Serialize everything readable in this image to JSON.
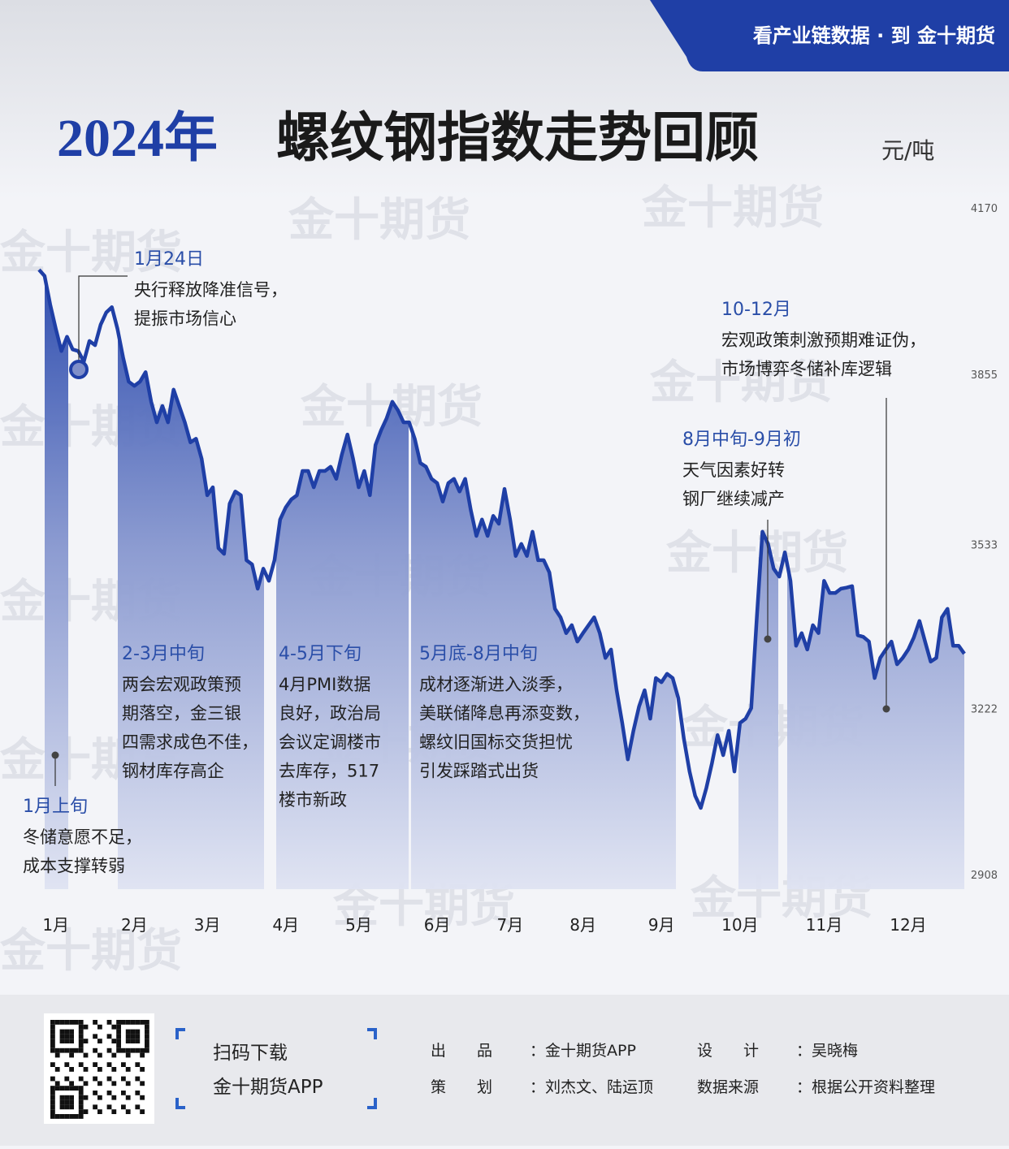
{
  "banner": "看产业链数据 · 到 金十期货",
  "watermark": "金十期货",
  "chart_data": {
    "type": "area",
    "title_year": "2024年",
    "title": "螺纹钢指数走势回顾",
    "unit": "元/吨",
    "color": "#1f3fa6",
    "ylim": [
      2908,
      4170
    ],
    "yticks": [
      2908,
      3222,
      3533,
      3855,
      4170
    ],
    "categories": [
      null,
      null,
      null,
      "1月",
      null,
      null,
      null,
      null,
      null,
      null,
      null,
      null,
      null,
      null,
      null,
      null,
      null,
      "2月",
      null,
      null,
      null,
      null,
      null,
      null,
      null,
      null,
      null,
      null,
      null,
      null,
      "3月",
      null,
      null,
      null,
      null,
      null,
      null,
      null,
      null,
      null,
      null,
      null,
      null,
      null,
      "4月",
      null,
      null,
      null,
      null,
      null,
      null,
      null,
      null,
      null,
      null,
      null,
      null,
      "5月",
      null,
      null,
      null,
      null,
      null,
      null,
      null,
      null,
      null,
      null,
      null,
      null,
      null,
      "6月",
      null,
      null,
      null,
      null,
      null,
      null,
      null,
      null,
      null,
      null,
      null,
      null,
      "7月",
      null,
      null,
      null,
      null,
      null,
      null,
      null,
      null,
      null,
      null,
      null,
      null,
      "8月",
      null,
      null,
      null,
      null,
      null,
      null,
      null,
      null,
      null,
      null,
      null,
      null,
      null,
      "9月",
      null,
      null,
      null,
      null,
      null,
      null,
      null,
      null,
      null,
      null,
      null,
      null,
      null,
      "10月",
      null,
      null,
      null,
      null,
      null,
      null,
      null,
      null,
      null,
      null,
      null,
      null,
      null,
      null,
      "11月",
      null,
      null,
      null,
      null,
      null,
      null,
      null,
      null,
      null,
      null,
      null,
      null,
      null,
      null,
      "12月",
      null,
      null,
      null,
      null,
      null,
      null,
      null,
      null,
      null,
      null
    ],
    "values": [
      4053,
      4041,
      3987,
      3941,
      3899,
      3926,
      3902,
      3899,
      3879,
      3918,
      3910,
      3949,
      3972,
      3982,
      3941,
      3887,
      3841,
      3833,
      3841,
      3859,
      3803,
      3764,
      3795,
      3764,
      3826,
      3795,
      3764,
      3726,
      3733,
      3695,
      3626,
      3641,
      3526,
      3515,
      3610,
      3633,
      3626,
      3503,
      3495,
      3449,
      3487,
      3464,
      3503,
      3580,
      3603,
      3618,
      3626,
      3672,
      3672,
      3641,
      3672,
      3672,
      3680,
      3657,
      3703,
      3741,
      3695,
      3641,
      3672,
      3626,
      3721,
      3749,
      3772,
      3803,
      3787,
      3764,
      3764,
      3733,
      3687,
      3680,
      3657,
      3649,
      3614,
      3649,
      3657,
      3633,
      3657,
      3598,
      3549,
      3580,
      3549,
      3587,
      3572,
      3638,
      3580,
      3511,
      3534,
      3511,
      3557,
      3503,
      3503,
      3480,
      3411,
      3395,
      3365,
      3380,
      3349,
      3365,
      3380,
      3395,
      3365,
      3318,
      3334,
      3257,
      3195,
      3126,
      3180,
      3226,
      3257,
      3203,
      3280,
      3272,
      3288,
      3280,
      3242,
      3165,
      3103,
      3057,
      3034,
      3072,
      3119,
      3172,
      3134,
      3180,
      3103,
      3195,
      3203,
      3223,
      3395,
      3557,
      3534,
      3487,
      3472,
      3518,
      3464,
      3341,
      3365,
      3334,
      3380,
      3365,
      3464,
      3441,
      3441,
      3449,
      3451,
      3454,
      3361,
      3358,
      3349,
      3280,
      3318,
      3334,
      3349,
      3306,
      3318,
      3334,
      3357,
      3388,
      3349,
      3311,
      3318,
      3395,
      3411,
      3341,
      3341,
      3326
    ],
    "annotations": [
      {
        "title": "1月上旬",
        "lines": [
          "冬储意愿不足，",
          "成本支撑转弱"
        ]
      },
      {
        "title": "1月24日",
        "lines": [
          "央行释放降准信号，",
          "提振市场信心"
        ]
      },
      {
        "title": "2-3月中旬",
        "lines": [
          "两会宏观政策预",
          "期落空，金三银",
          "四需求成色不佳，",
          "钢材库存高企"
        ]
      },
      {
        "title": "4-5月下旬",
        "lines": [
          "4月PMI数据",
          "良好，政治局",
          "会议定调楼市",
          "去库存，517",
          "楼市新政"
        ]
      },
      {
        "title": "5月底-8月中旬",
        "lines": [
          "成材逐渐进入淡季，",
          "美联储降息再添变数，",
          "螺纹旧国标交货担忧",
          "引发踩踏式出货"
        ]
      },
      {
        "title": "8月中旬-9月初",
        "lines": [
          "天气因素好转",
          "钢厂继续减产"
        ]
      },
      {
        "title": "10-12月",
        "lines": [
          "宏观政策刺激预期难证伪，",
          "市场博弈冬储补库逻辑"
        ]
      }
    ]
  },
  "footer": {
    "scan": [
      "扫码下载",
      "金十期货APP"
    ],
    "credits": [
      [
        "出　　品",
        "：金十期货APP"
      ],
      [
        "设　　计",
        "：吴晓梅"
      ],
      [
        "策　　划",
        "：刘杰文、陆运顶"
      ],
      [
        "数据来源",
        "：根据公开资料整理"
      ]
    ]
  }
}
